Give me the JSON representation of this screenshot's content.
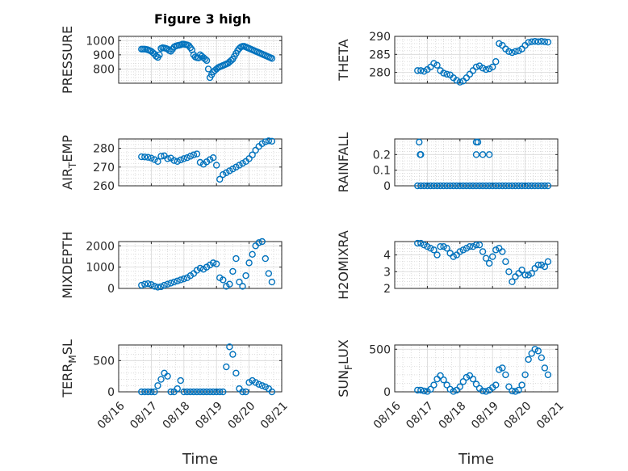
{
  "figure": {
    "title": "Figure 3 high",
    "marker_color": "#0072bd"
  },
  "chart_data": [
    {
      "type": "scatter",
      "title": "Figure 3 high",
      "xlabel": "",
      "ylabel": "PRESSURE",
      "ylim": [
        700,
        1030
      ],
      "yticks": [
        800,
        900,
        1000
      ],
      "x": [
        0.7,
        0.75,
        0.8,
        0.85,
        0.9,
        0.95,
        1.0,
        1.05,
        1.1,
        1.15,
        1.2,
        1.25,
        1.3,
        1.35,
        1.4,
        1.45,
        1.5,
        1.55,
        1.6,
        1.65,
        1.7,
        1.75,
        1.8,
        1.85,
        1.9,
        1.95,
        2.0,
        2.05,
        2.1,
        2.15,
        2.2,
        2.25,
        2.3,
        2.35,
        2.4,
        2.45,
        2.5,
        2.55,
        2.6,
        2.65,
        2.7,
        2.75,
        2.8,
        2.85,
        2.9,
        2.95,
        3.0,
        3.05,
        3.1,
        3.15,
        3.2,
        3.25,
        3.3,
        3.35,
        3.4,
        3.45,
        3.5,
        3.55,
        3.6,
        3.65,
        3.7,
        3.75,
        3.8,
        3.85,
        3.9,
        3.95,
        4.0,
        4.05,
        4.1,
        4.15,
        4.2,
        4.25,
        4.3,
        4.35,
        4.4,
        4.45,
        4.5,
        4.55,
        4.6,
        4.65,
        4.7
      ],
      "y": [
        940,
        940,
        940,
        938,
        935,
        930,
        925,
        915,
        905,
        890,
        882,
        900,
        945,
        950,
        948,
        945,
        940,
        930,
        925,
        940,
        955,
        962,
        965,
        968,
        970,
        975,
        975,
        972,
        970,
        965,
        950,
        935,
        900,
        885,
        880,
        878,
        900,
        890,
        880,
        870,
        860,
        800,
        740,
        760,
        780,
        790,
        800,
        810,
        815,
        820,
        825,
        830,
        835,
        840,
        850,
        860,
        870,
        890,
        910,
        930,
        945,
        955,
        960,
        960,
        955,
        950,
        945,
        940,
        935,
        930,
        925,
        920,
        915,
        910,
        905,
        900,
        895,
        890,
        885,
        880,
        875
      ],
      "x_plot_range": [
        0.7,
        4.7
      ]
    },
    {
      "type": "scatter",
      "xlabel": "",
      "ylabel": "THETA",
      "ylim": [
        277,
        290
      ],
      "yticks": [
        280,
        285,
        290
      ],
      "x": [
        0.7,
        0.8,
        0.9,
        1.0,
        1.1,
        1.2,
        1.3,
        1.4,
        1.5,
        1.6,
        1.7,
        1.8,
        1.9,
        2.0,
        2.1,
        2.2,
        2.3,
        2.4,
        2.5,
        2.6,
        2.7,
        2.8,
        2.9,
        3.0,
        3.1,
        3.2,
        3.3,
        3.4,
        3.5,
        3.6,
        3.7,
        3.8,
        3.9,
        4.0,
        4.1,
        4.2,
        4.3,
        4.4,
        4.5,
        4.6,
        4.7
      ],
      "y": [
        280.5,
        280.5,
        280.3,
        280.8,
        281.5,
        282.5,
        282.0,
        280.5,
        279.8,
        279.5,
        279.3,
        278.5,
        277.8,
        277.3,
        277.6,
        278.5,
        279.5,
        280.5,
        281.5,
        281.8,
        281.2,
        280.8,
        281.0,
        281.5,
        283.0,
        288.0,
        287.5,
        286.5,
        285.8,
        285.5,
        285.8,
        286.0,
        286.5,
        287.5,
        288.3,
        288.5,
        288.6,
        288.5,
        288.6,
        288.5,
        288.4
      ]
    },
    {
      "type": "scatter",
      "xlabel": "",
      "ylabel": "AIR_TEMP",
      "ylim": [
        260,
        285
      ],
      "yticks": [
        260,
        270,
        280
      ],
      "x": [
        0.7,
        0.8,
        0.9,
        1.0,
        1.1,
        1.2,
        1.3,
        1.4,
        1.5,
        1.6,
        1.7,
        1.8,
        1.9,
        2.0,
        2.1,
        2.2,
        2.3,
        2.4,
        2.5,
        2.6,
        2.7,
        2.8,
        2.9,
        3.0,
        3.1,
        3.2,
        3.3,
        3.4,
        3.5,
        3.6,
        3.7,
        3.8,
        3.9,
        4.0,
        4.1,
        4.2,
        4.3,
        4.4,
        4.5,
        4.6,
        4.7
      ],
      "y": [
        275.5,
        275.4,
        275.2,
        274.8,
        274.0,
        273.0,
        275.8,
        276.0,
        274.5,
        274.8,
        273.5,
        273.0,
        273.8,
        274.5,
        275.0,
        275.8,
        276.5,
        277.0,
        272.5,
        271.5,
        272.8,
        274.0,
        275.0,
        271.0,
        263.5,
        266.0,
        267.0,
        268.0,
        269.0,
        270.0,
        271.0,
        272.0,
        273.0,
        274.5,
        276.5,
        279.0,
        281.0,
        282.5,
        283.5,
        284.0,
        283.8
      ]
    },
    {
      "type": "scatter",
      "xlabel": "",
      "ylabel": "RAINFALL",
      "ylim": [
        0,
        0.3
      ],
      "yticks": [
        0,
        0.1,
        0.2
      ],
      "x": [
        0.7,
        0.8,
        0.9,
        1.0,
        1.1,
        1.2,
        1.3,
        1.4,
        1.5,
        1.6,
        1.7,
        1.8,
        1.9,
        2.0,
        2.1,
        2.2,
        2.3,
        2.4,
        2.5,
        2.6,
        2.7,
        2.8,
        2.9,
        3.0,
        3.1,
        3.2,
        3.3,
        3.4,
        3.5,
        3.6,
        3.7,
        3.8,
        3.9,
        4.0,
        4.1,
        4.2,
        4.3,
        4.4,
        4.5,
        4.6,
        4.7,
        0.75,
        0.78,
        0.8,
        2.5,
        2.55,
        2.5,
        2.7,
        2.9
      ],
      "y": [
        0,
        0,
        0,
        0,
        0,
        0,
        0,
        0,
        0,
        0,
        0,
        0,
        0,
        0,
        0,
        0,
        0,
        0,
        0,
        0,
        0,
        0,
        0,
        0,
        0,
        0,
        0,
        0,
        0,
        0,
        0,
        0,
        0,
        0,
        0,
        0,
        0,
        0,
        0,
        0,
        0,
        0.28,
        0.2,
        0.2,
        0.28,
        0.28,
        0.2,
        0.2,
        0.2
      ]
    },
    {
      "type": "scatter",
      "xlabel": "",
      "ylabel": "MIXDEPTH",
      "ylim": [
        0,
        2200
      ],
      "yticks": [
        0,
        1000,
        2000
      ],
      "x": [
        0.7,
        0.8,
        0.9,
        1.0,
        1.1,
        1.2,
        1.3,
        1.4,
        1.5,
        1.6,
        1.7,
        1.8,
        1.9,
        2.0,
        2.1,
        2.2,
        2.3,
        2.4,
        2.5,
        2.6,
        2.7,
        2.8,
        2.9,
        3.0,
        3.1,
        3.2,
        3.3,
        3.4,
        3.5,
        3.6,
        3.7,
        3.8,
        3.9,
        4.0,
        4.1,
        4.2,
        4.3,
        4.4,
        4.5,
        4.6,
        4.7
      ],
      "y": [
        150,
        200,
        220,
        180,
        100,
        60,
        80,
        150,
        200,
        250,
        300,
        350,
        400,
        450,
        500,
        600,
        700,
        850,
        950,
        900,
        1000,
        1100,
        1200,
        1150,
        500,
        400,
        100,
        200,
        800,
        1400,
        300,
        100,
        600,
        1200,
        1600,
        2000,
        2150,
        2200,
        1400,
        700,
        300
      ]
    },
    {
      "type": "scatter",
      "xlabel": "",
      "ylabel": "H2OMIXRA",
      "ylim": [
        2,
        4.8
      ],
      "yticks": [
        2,
        3,
        4
      ],
      "x": [
        0.7,
        0.8,
        0.9,
        1.0,
        1.1,
        1.2,
        1.3,
        1.4,
        1.5,
        1.6,
        1.7,
        1.8,
        1.9,
        2.0,
        2.1,
        2.2,
        2.3,
        2.4,
        2.5,
        2.6,
        2.7,
        2.8,
        2.9,
        3.0,
        3.1,
        3.2,
        3.3,
        3.4,
        3.5,
        3.6,
        3.7,
        3.8,
        3.9,
        4.0,
        4.1,
        4.2,
        4.3,
        4.4,
        4.5,
        4.6,
        4.7
      ],
      "y": [
        4.7,
        4.7,
        4.6,
        4.5,
        4.4,
        4.3,
        4.0,
        4.5,
        4.5,
        4.4,
        4.1,
        3.9,
        4.0,
        4.2,
        4.3,
        4.4,
        4.5,
        4.5,
        4.6,
        4.6,
        4.2,
        3.8,
        3.5,
        3.9,
        4.3,
        4.4,
        4.2,
        3.6,
        3.0,
        2.4,
        2.7,
        2.9,
        3.1,
        2.8,
        2.8,
        2.9,
        3.2,
        3.4,
        3.4,
        3.3,
        3.6
      ]
    },
    {
      "type": "scatter",
      "xlabel": "Time",
      "ylabel": "TERR_MSL",
      "ylim": [
        0,
        750
      ],
      "yticks": [
        0,
        500
      ],
      "x": [
        0.7,
        0.8,
        0.9,
        1.0,
        1.1,
        1.2,
        1.3,
        1.4,
        1.5,
        1.6,
        1.7,
        1.8,
        1.9,
        2.0,
        2.1,
        2.2,
        2.3,
        2.4,
        2.5,
        2.6,
        2.7,
        2.8,
        2.9,
        3.0,
        3.1,
        3.2,
        3.3,
        3.4,
        3.5,
        3.6,
        3.7,
        3.8,
        3.9,
        4.0,
        4.1,
        4.2,
        4.3,
        4.4,
        4.5,
        4.6,
        4.7
      ],
      "y": [
        0,
        0,
        0,
        0,
        0,
        100,
        200,
        300,
        250,
        0,
        0,
        50,
        180,
        0,
        0,
        0,
        0,
        0,
        0,
        0,
        0,
        0,
        0,
        0,
        0,
        0,
        400,
        720,
        600,
        300,
        50,
        0,
        0,
        150,
        180,
        150,
        120,
        100,
        80,
        50,
        0
      ]
    },
    {
      "type": "scatter",
      "xlabel": "Time",
      "ylabel": "SUN_FLUX",
      "ylim": [
        0,
        550
      ],
      "yticks": [
        0,
        500
      ],
      "x": [
        0.7,
        0.8,
        0.9,
        1.0,
        1.1,
        1.2,
        1.3,
        1.4,
        1.5,
        1.6,
        1.7,
        1.8,
        1.9,
        2.0,
        2.1,
        2.2,
        2.3,
        2.4,
        2.5,
        2.6,
        2.7,
        2.8,
        2.9,
        3.0,
        3.1,
        3.2,
        3.3,
        3.4,
        3.5,
        3.6,
        3.7,
        3.8,
        3.9,
        4.0,
        4.1,
        4.2,
        4.3,
        4.4,
        4.5,
        4.6,
        4.7
      ],
      "y": [
        20,
        20,
        10,
        5,
        30,
        80,
        150,
        190,
        140,
        80,
        30,
        5,
        20,
        60,
        120,
        170,
        190,
        150,
        90,
        40,
        10,
        5,
        20,
        50,
        80,
        260,
        280,
        200,
        60,
        10,
        5,
        20,
        80,
        200,
        380,
        450,
        500,
        480,
        400,
        280,
        200
      ]
    }
  ],
  "xaxis": {
    "ticks": [
      0,
      1,
      2,
      3,
      4,
      5
    ],
    "ticklabels": [
      "08/16",
      "08/17",
      "08/18",
      "08/19",
      "08/20",
      "08/21"
    ],
    "label": "Time"
  }
}
